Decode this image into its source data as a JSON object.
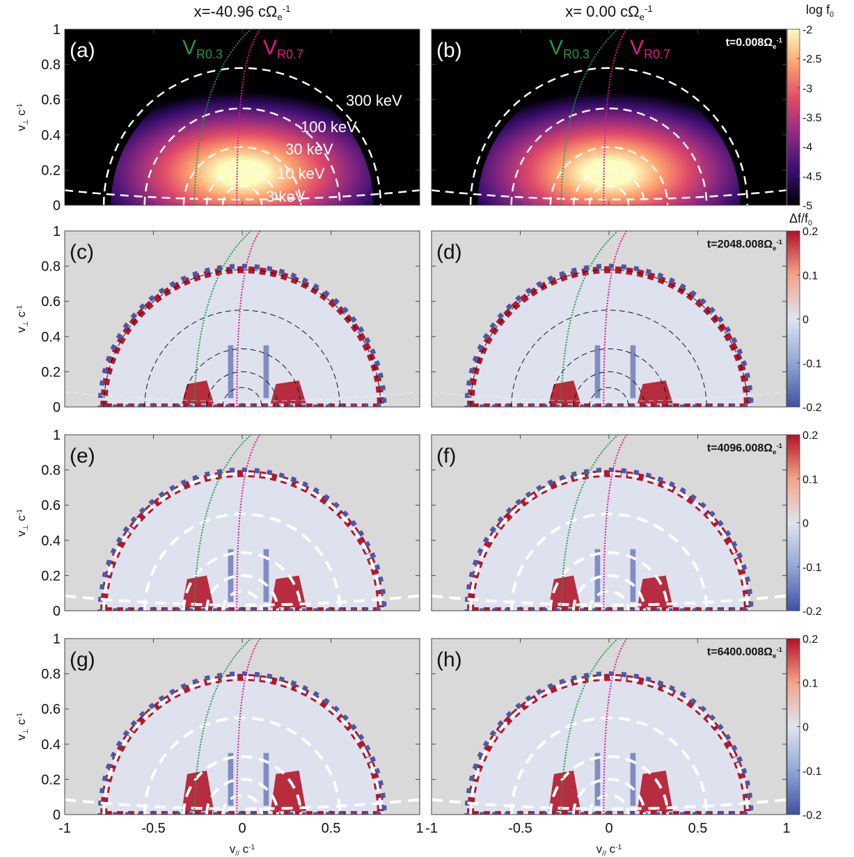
{
  "column_titles": [
    [
      {
        "text": "x=-40.96 cΩ"
      },
      {
        "sub": "e"
      },
      {
        "sup": "-1"
      }
    ],
    [
      {
        "text": "x= 0.00 cΩ"
      },
      {
        "sub": "e"
      },
      {
        "sup": "-1"
      }
    ]
  ],
  "y_label": [
    {
      "text": "v"
    },
    {
      "sub": "⊥"
    },
    {
      "text": " c"
    },
    {
      "sup": "-1"
    }
  ],
  "x_label": [
    {
      "text": "v"
    },
    {
      "sub": "//"
    },
    {
      "text": " c"
    },
    {
      "sup": "-1"
    }
  ],
  "axes": {
    "xlim": [
      -1,
      1
    ],
    "xticks": [
      -1,
      -0.5,
      0,
      0.5,
      1
    ],
    "ylim": [
      0,
      1
    ],
    "yticks": [
      0,
      0.2,
      0.4,
      0.6,
      0.8,
      1
    ]
  },
  "panels": [
    {
      "label": "(a)"
    },
    {
      "label": "(b)",
      "time": [
        {
          "text": "t=0.008Ω"
        },
        {
          "sub": "e"
        },
        {
          "sup": "-1"
        }
      ]
    },
    {
      "label": "(c)"
    },
    {
      "label": "(d)",
      "time": [
        {
          "text": "t=2048.008Ω"
        },
        {
          "sub": "e"
        },
        {
          "sup": "-1"
        }
      ]
    },
    {
      "label": "(e)"
    },
    {
      "label": "(f)",
      "time": [
        {
          "text": "t=4096.008Ω"
        },
        {
          "sub": "e"
        },
        {
          "sup": "-1"
        }
      ]
    },
    {
      "label": "(g)"
    },
    {
      "label": "(h)",
      "time": [
        {
          "text": "t=6400.008Ω"
        },
        {
          "sub": "e"
        },
        {
          "sup": "-1"
        }
      ]
    }
  ],
  "resonance_labels": [
    [
      {
        "text": "V"
      },
      {
        "sub": "R0.3"
      }
    ],
    [
      {
        "text": "V"
      },
      {
        "sub": "R0.7"
      }
    ]
  ],
  "resonance_colors": [
    "#1f9a48",
    "#e5178a"
  ],
  "energy_labels": [
    "300 keV",
    "100 keV",
    "30 keV",
    "10 keV",
    "3 keV"
  ],
  "colorbars": [
    {
      "title": [
        {
          "text": "log f"
        },
        {
          "sub": "0"
        }
      ],
      "lim": [
        -5,
        -2
      ],
      "ticks": [
        -2,
        -2.5,
        -3,
        -3.5,
        -4,
        -4.5,
        -5
      ],
      "colors": [
        "#000004",
        "#3b0f70",
        "#8c2981",
        "#de4968",
        "#fe9f6d",
        "#fcfdbf"
      ]
    },
    {
      "title": [
        {
          "text": "Δf/f"
        },
        {
          "sub": "0"
        }
      ],
      "lim": [
        -0.2,
        0.2
      ],
      "ticks": [
        0.2,
        0.1,
        0,
        -0.1,
        -0.2
      ],
      "colors": [
        "#3f51a2",
        "#92a6d6",
        "#dfe4ef",
        "#f2a58a",
        "#b40f26"
      ]
    }
  ]
}
